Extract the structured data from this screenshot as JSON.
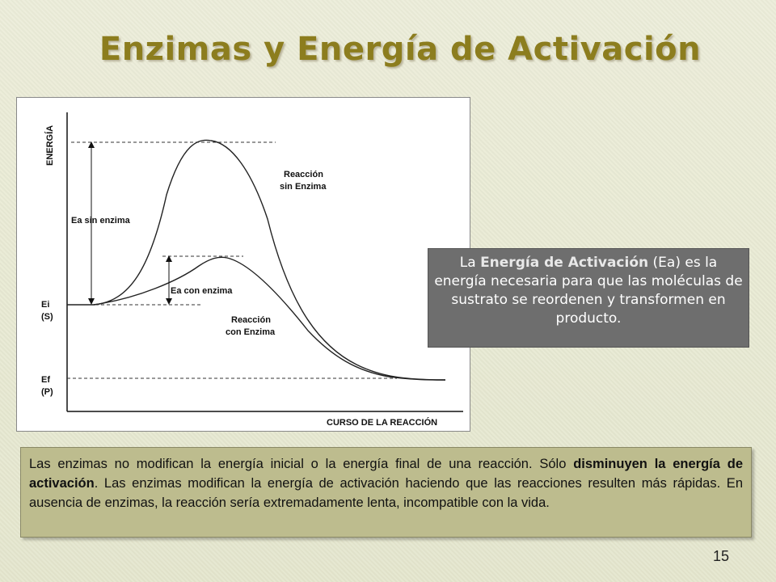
{
  "slide": {
    "title": "Enzimas y Energía de Activación",
    "page_number": "15"
  },
  "diagram": {
    "y_axis_label": "ENERGÍA",
    "x_axis_label": "CURSO DE LA REACCIÓN",
    "ei_label": "Ei",
    "s_label": "(S)",
    "ef_label": "Ef",
    "p_label": "(P)",
    "ea_without_label": "Ea sin enzima",
    "ea_with_label": "Ea  con enzima",
    "curve_without_line1": "Reacción",
    "curve_without_line2": "sin Enzima",
    "curve_with_line1": "Reacción",
    "curve_with_line2": "con Enzima"
  },
  "ea_box": {
    "part1": "La ",
    "bold": "Energía de Activación",
    "part2": " (Ea) es la energía necesaria para que las moléculas de sustrato se reordenen y transformen en producto."
  },
  "note": {
    "part1": "Las enzimas no modifican la energía inicial o la energía final de una reacción. Sólo ",
    "bold": "disminuyen la energía de activación",
    "part2": ". Las enzimas modifican la energía de activación haciendo que las reacciones resulten más rápidas. En ausencia de enzimas, la reacción sería extremadamente lenta, incompatible con la vida."
  },
  "colors": {
    "title": "#8c7d1e",
    "ea_box_bg": "#6e6e6e",
    "note_bg": "#bdbc8e"
  }
}
